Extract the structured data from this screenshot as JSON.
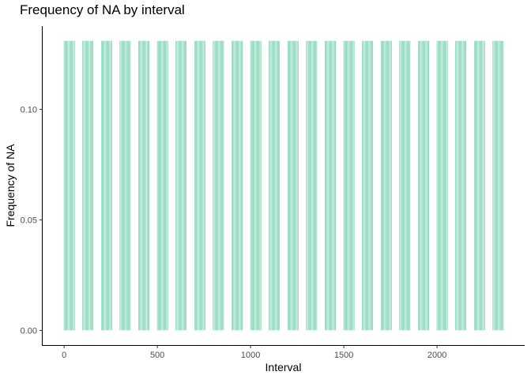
{
  "chart_data": {
    "type": "bar",
    "title": "Frequency of NA by interval",
    "xlabel": "Interval",
    "ylabel": "Frequency of NA",
    "xlim": [
      -115,
      2470
    ],
    "ylim": [
      -0.0066,
      0.1377
    ],
    "x_ticks": [
      0,
      500,
      1000,
      1500,
      2000
    ],
    "x_tick_labels": [
      "0",
      "500",
      "1000",
      "1500",
      "2000"
    ],
    "y_ticks": [
      0.0,
      0.05,
      0.1
    ],
    "y_tick_labels": [
      "0.00",
      "0.05",
      "0.10"
    ],
    "grid": false,
    "bar_color": "#5bc79e",
    "bar_width": 5,
    "constant_value": 0.1311,
    "hour_blocks": [
      0,
      100,
      200,
      300,
      400,
      500,
      600,
      700,
      800,
      900,
      1000,
      1100,
      1200,
      1300,
      1400,
      1500,
      1600,
      1700,
      1800,
      1900,
      2000,
      2100,
      2200,
      2300
    ],
    "minute_offsets": [
      0,
      5,
      10,
      15,
      20,
      25,
      30,
      35,
      40,
      45,
      50,
      55
    ]
  }
}
